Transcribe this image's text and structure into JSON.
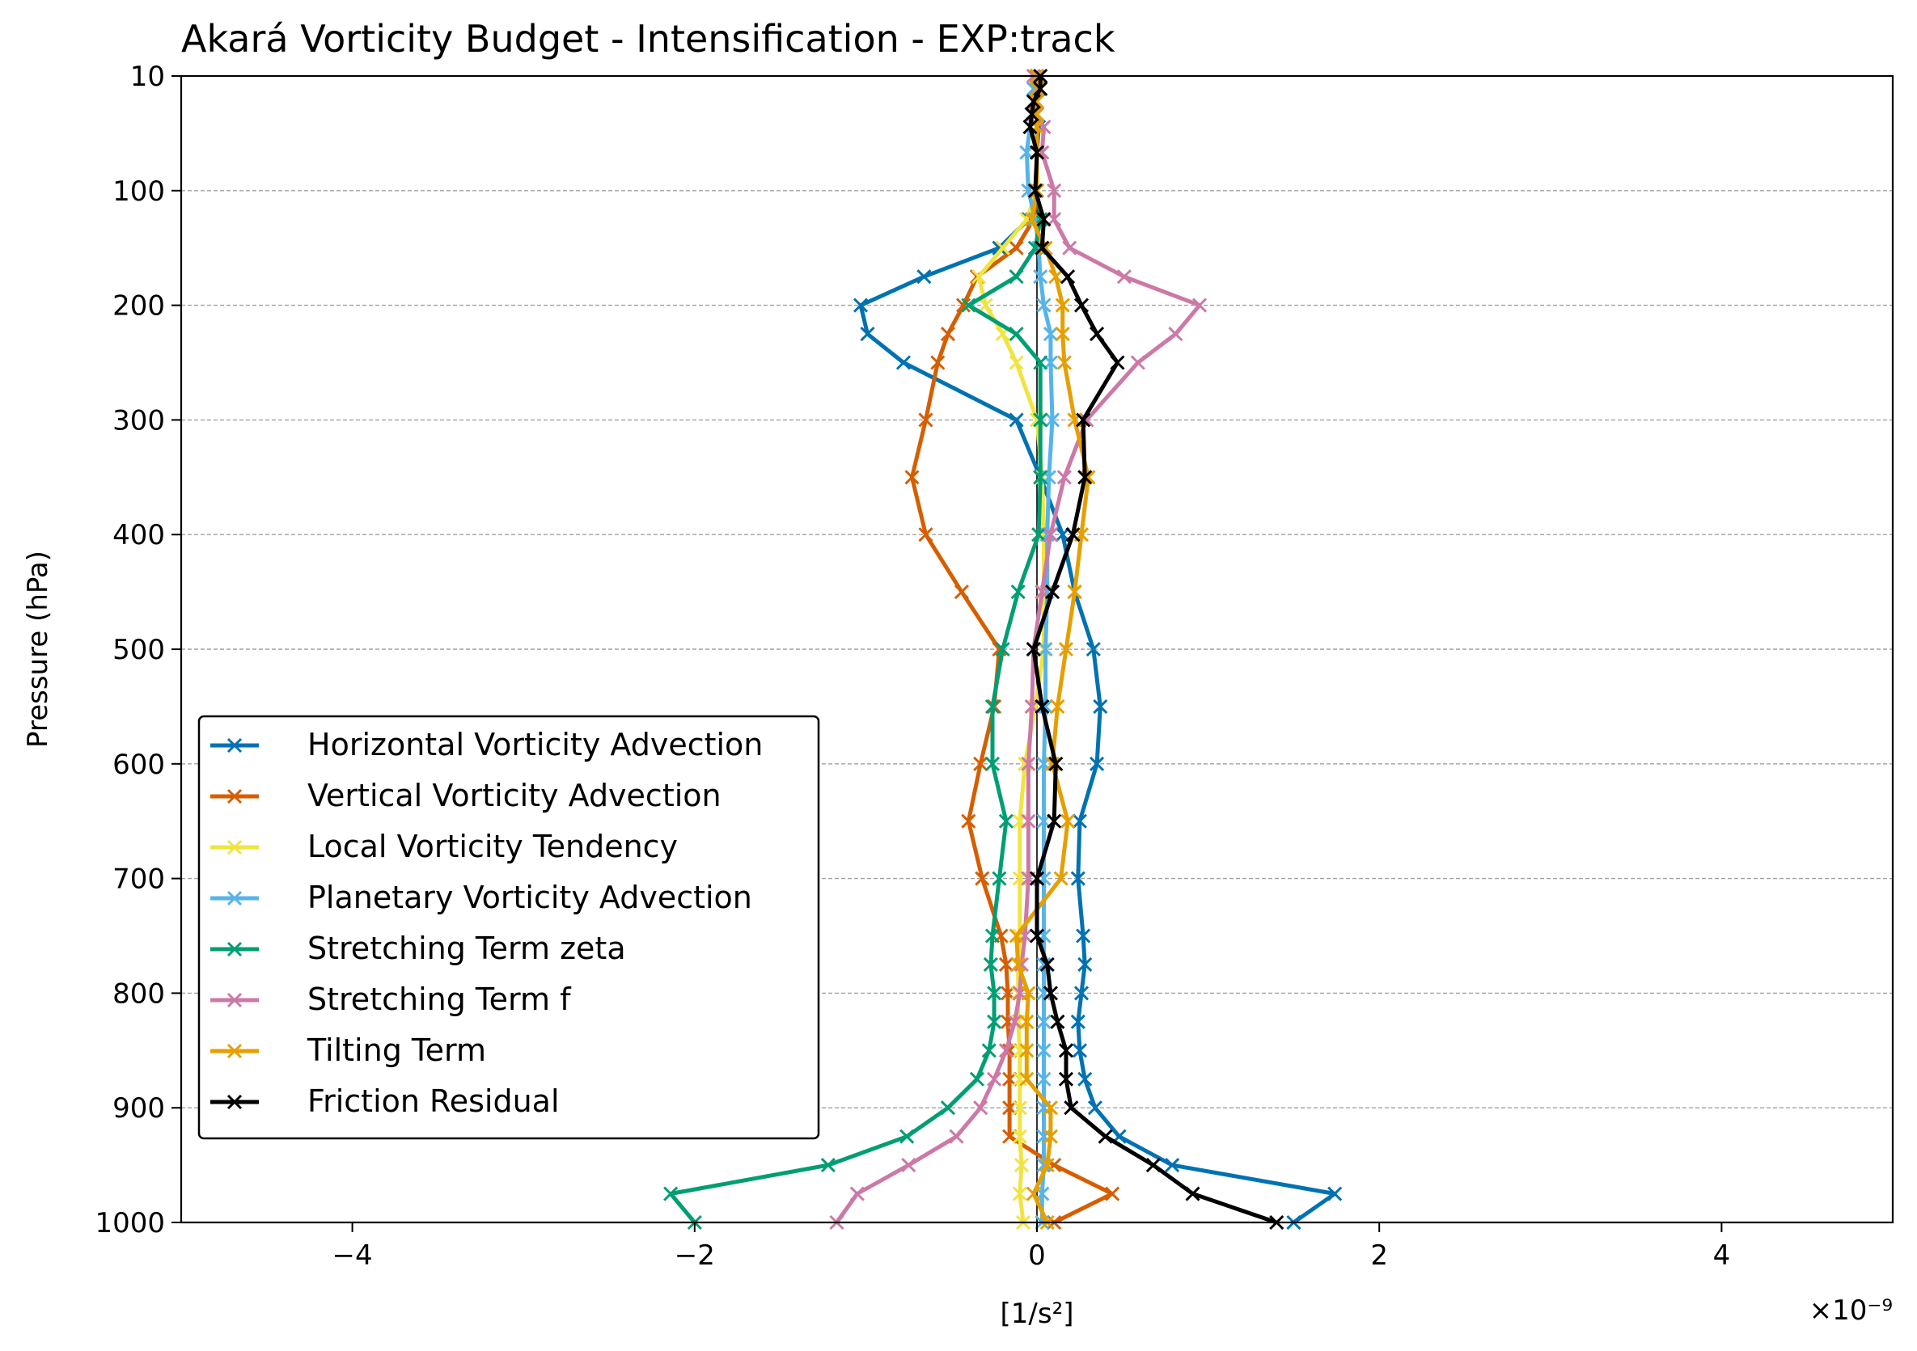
{
  "chart_data": {
    "type": "line",
    "title": "Akará Vorticity Budget - Intensification - EXP:track",
    "xlabel": "[1/s²]",
    "ylabel": "Pressure (hPa)",
    "x_scale_label": "×10⁻⁹",
    "x_scale": 1e-09,
    "xlim": [
      -5,
      5
    ],
    "ylim": [
      1000,
      10
    ],
    "y_inverted": true,
    "xticks": [
      -4,
      -2,
      0,
      2,
      4
    ],
    "xtick_labels": [
      "−4",
      "−2",
      "0",
      "2",
      "4"
    ],
    "yticks": [
      10,
      100,
      200,
      300,
      400,
      500,
      600,
      700,
      800,
      900,
      1000
    ],
    "ytick_labels": [
      "10",
      "100",
      "200",
      "300",
      "400",
      "500",
      "600",
      "700",
      "800",
      "900",
      "1000"
    ],
    "grid": "horizontal dashed",
    "legend_position": "lower-left",
    "pressure": [
      10,
      20,
      30,
      40,
      50,
      70,
      100,
      125,
      150,
      175,
      200,
      225,
      250,
      300,
      350,
      400,
      450,
      500,
      550,
      600,
      650,
      700,
      750,
      775,
      800,
      825,
      850,
      875,
      900,
      925,
      950,
      975,
      1000
    ],
    "series": [
      {
        "name": "Horizontal Vorticity Advection",
        "color": "#0072b2",
        "values": [
          0.0,
          0.01,
          -0.01,
          0.0,
          0.01,
          0.0,
          0.0,
          -0.05,
          -0.22,
          -0.66,
          -1.03,
          -0.99,
          -0.78,
          -0.12,
          0.02,
          0.15,
          0.22,
          0.33,
          0.37,
          0.35,
          0.25,
          0.24,
          0.27,
          0.28,
          0.26,
          0.24,
          0.25,
          0.28,
          0.34,
          0.48,
          0.79,
          1.74,
          1.5
        ]
      },
      {
        "name": "Vertical Vorticity Advection",
        "color": "#d55e00",
        "values": [
          0.0,
          0.0,
          0.0,
          0.0,
          0.0,
          0.0,
          0.0,
          -0.02,
          -0.12,
          -0.35,
          -0.43,
          -0.52,
          -0.58,
          -0.65,
          -0.73,
          -0.65,
          -0.44,
          -0.22,
          -0.25,
          -0.33,
          -0.4,
          -0.32,
          -0.21,
          -0.18,
          -0.17,
          -0.17,
          -0.16,
          -0.16,
          -0.16,
          -0.16,
          0.1,
          0.44,
          0.1
        ]
      },
      {
        "name": "Local Vorticity Tendency",
        "color": "#f0e442",
        "values": [
          0.0,
          0.0,
          0.0,
          0.0,
          0.0,
          0.0,
          0.0,
          -0.06,
          -0.2,
          -0.34,
          -0.3,
          -0.2,
          -0.12,
          0.0,
          0.03,
          0.04,
          0.04,
          0.04,
          -0.01,
          -0.07,
          -0.1,
          -0.1,
          -0.1,
          -0.11,
          -0.11,
          -0.11,
          -0.1,
          -0.1,
          -0.1,
          -0.1,
          -0.09,
          -0.1,
          -0.08
        ]
      },
      {
        "name": "Planetary Vorticity Advection",
        "color": "#56b4e9",
        "values": [
          0.0,
          -0.02,
          -0.02,
          -0.03,
          -0.04,
          -0.06,
          -0.05,
          -0.01,
          0.01,
          0.02,
          0.04,
          0.08,
          0.08,
          0.09,
          0.07,
          0.06,
          0.06,
          0.05,
          0.05,
          0.04,
          0.04,
          0.04,
          0.04,
          0.04,
          0.04,
          0.04,
          0.04,
          0.04,
          0.04,
          0.04,
          0.04,
          0.03,
          0.03
        ]
      },
      {
        "name": "Stretching Term zeta",
        "color": "#009e73",
        "values": [
          0.0,
          0.0,
          0.0,
          0.0,
          0.0,
          0.0,
          0.0,
          0.02,
          -0.01,
          -0.12,
          -0.4,
          -0.12,
          0.02,
          0.02,
          0.02,
          0.01,
          -0.11,
          -0.2,
          -0.26,
          -0.26,
          -0.18,
          -0.22,
          -0.26,
          -0.27,
          -0.25,
          -0.25,
          -0.28,
          -0.35,
          -0.52,
          -0.76,
          -1.22,
          -2.14,
          -2.0
        ]
      },
      {
        "name": "Stretching Term f",
        "color": "#cc79a7",
        "values": [
          -0.02,
          0.02,
          -0.01,
          -0.02,
          0.04,
          0.03,
          0.1,
          0.1,
          0.19,
          0.51,
          0.95,
          0.81,
          0.59,
          0.29,
          0.16,
          0.08,
          0.03,
          -0.02,
          -0.03,
          -0.05,
          -0.05,
          -0.05,
          -0.07,
          -0.09,
          -0.1,
          -0.13,
          -0.18,
          -0.25,
          -0.33,
          -0.47,
          -0.75,
          -1.05,
          -1.17
        ]
      },
      {
        "name": "Tilting Term",
        "color": "#e69f00",
        "values": [
          0.0,
          0.0,
          0.0,
          0.0,
          0.0,
          0.0,
          0.0,
          -0.03,
          0.05,
          0.11,
          0.15,
          0.15,
          0.16,
          0.22,
          0.3,
          0.26,
          0.22,
          0.17,
          0.12,
          0.09,
          0.18,
          0.14,
          -0.12,
          -0.11,
          -0.05,
          -0.06,
          -0.06,
          -0.06,
          0.08,
          0.08,
          0.06,
          -0.02,
          0.06
        ]
      },
      {
        "name": "Friction Residual",
        "color": "#000000",
        "values": [
          0.02,
          0.02,
          -0.02,
          -0.03,
          -0.04,
          0.0,
          -0.01,
          0.04,
          0.03,
          0.18,
          0.26,
          0.35,
          0.47,
          0.27,
          0.28,
          0.21,
          0.09,
          -0.02,
          0.03,
          0.11,
          0.1,
          0.0,
          0.0,
          0.06,
          0.08,
          0.12,
          0.17,
          0.17,
          0.2,
          0.4,
          0.68,
          0.91,
          1.4
        ]
      }
    ]
  }
}
